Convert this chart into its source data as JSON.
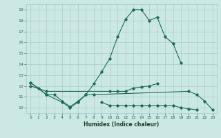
{
  "xlabel": "Humidex (Indice chaleur)",
  "bg_color": "#cce8e4",
  "grid_color": "#aaccca",
  "line_color": "#1a6b5a",
  "xlim": [
    -0.5,
    23.5
  ],
  "ylim": [
    9.5,
    19.5
  ],
  "xticks": [
    0,
    1,
    2,
    3,
    4,
    5,
    6,
    7,
    8,
    9,
    10,
    11,
    12,
    13,
    14,
    15,
    16,
    17,
    18,
    19,
    20,
    21,
    22,
    23
  ],
  "yticks": [
    10,
    11,
    12,
    13,
    14,
    15,
    16,
    17,
    18,
    19
  ],
  "series": [
    {
      "x": [
        0,
        1,
        2,
        3,
        4,
        5,
        6,
        7,
        8,
        9,
        10,
        11,
        12,
        13,
        14,
        15,
        16,
        17,
        18,
        19
      ],
      "y": [
        12.3,
        11.8,
        11.2,
        11.2,
        10.6,
        10.1,
        10.6,
        11.2,
        12.2,
        13.3,
        14.5,
        16.5,
        18.1,
        19.0,
        19.0,
        18.0,
        18.3,
        16.5,
        15.9,
        14.1
      ]
    },
    {
      "x": [
        0,
        2,
        4,
        5,
        6,
        7,
        8,
        20,
        21,
        22,
        23
      ],
      "y": [
        12.3,
        11.2,
        10.5,
        10.0,
        10.5,
        11.2,
        11.2,
        11.5,
        11.2,
        10.6,
        9.8
      ]
    },
    {
      "x": [
        0,
        2,
        10,
        11,
        12,
        13,
        14,
        15,
        16
      ],
      "y": [
        12.0,
        11.5,
        11.5,
        11.5,
        11.5,
        11.8,
        11.9,
        12.0,
        12.2
      ]
    },
    {
      "x": [
        9,
        10,
        11,
        12,
        13,
        14,
        15,
        16,
        17,
        18,
        19,
        20,
        21
      ],
      "y": [
        10.5,
        10.2,
        10.2,
        10.2,
        10.2,
        10.2,
        10.2,
        10.2,
        10.2,
        10.2,
        10.0,
        9.9,
        9.8
      ]
    }
  ]
}
